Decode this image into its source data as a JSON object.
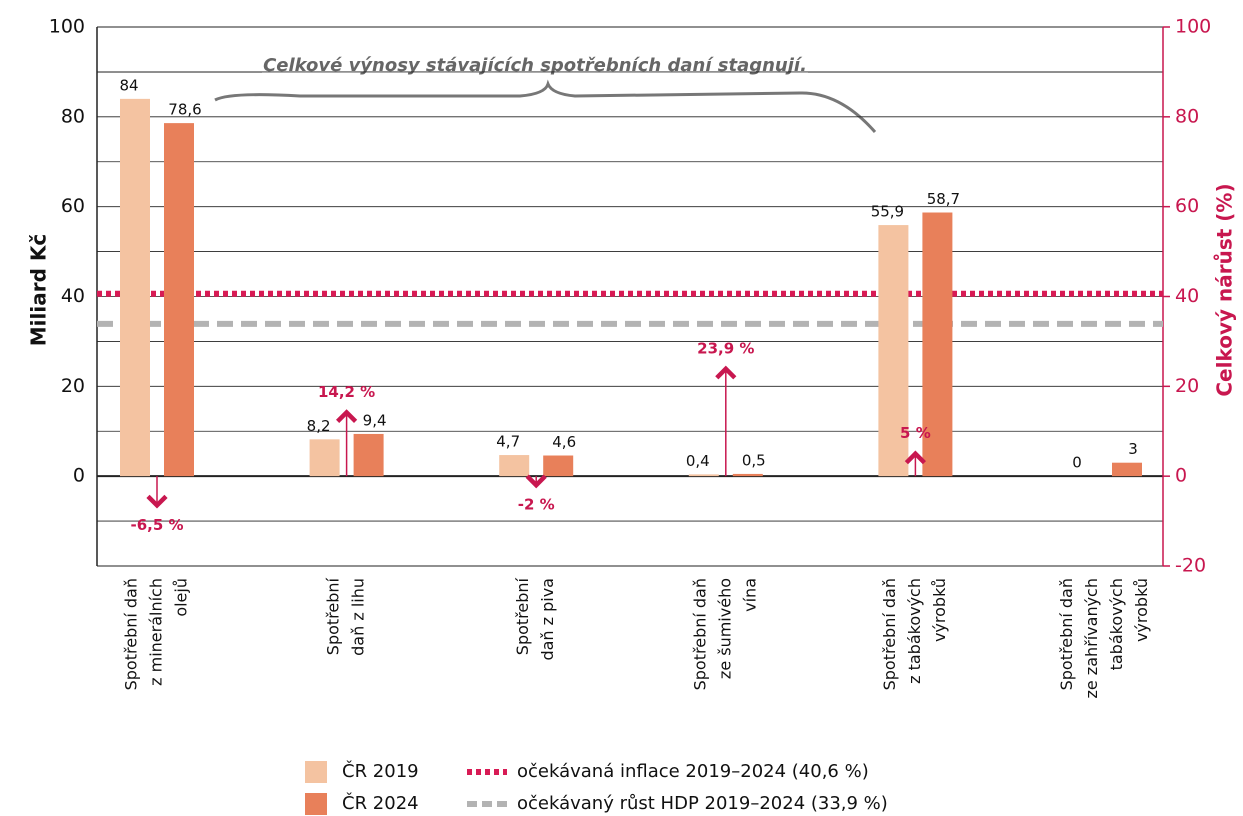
{
  "chart_data": {
    "type": "bar",
    "ylabel": "Miliard Kč",
    "y2label": "Celkový nárůst (%)",
    "annotation": "Celkové výnosy stávajících spotřebních daní stagnují.",
    "categories": [
      [
        "Spotřební daň",
        "z minerálních",
        "olejů"
      ],
      [
        "Spotřební",
        "daň z lihu"
      ],
      [
        "Spotřební",
        "daň z piva"
      ],
      [
        "Spotřební daň",
        "ze šumivého",
        "vína"
      ],
      [
        "Spotřební daň",
        "z tabákových",
        "výrobků"
      ],
      [
        "Spotřební daň",
        "ze zahřívaných",
        "tabákových",
        "výrobků"
      ]
    ],
    "series": [
      {
        "name": "ČR 2019",
        "color": "#f4c3a1",
        "values": [
          84,
          8.2,
          4.7,
          0.4,
          55.9,
          0
        ],
        "value_labels": [
          "84",
          "8,2",
          "4,7",
          "0,4",
          "55,9",
          "0"
        ]
      },
      {
        "name": "ČR 2024",
        "color": "#e8805a",
        "values": [
          78.6,
          9.4,
          4.6,
          0.5,
          58.7,
          3
        ],
        "value_labels": [
          "78,6",
          "9,4",
          "4,6",
          "0,5",
          "58,7",
          "3"
        ]
      }
    ],
    "growth": {
      "color": "#c8174f",
      "axis": "y2",
      "values": [
        -6.5,
        14.2,
        -2,
        23.9,
        5,
        null
      ],
      "value_labels": [
        "-6,5 %",
        "14,2 %",
        "-2 %",
        "23,9 %",
        "5 %",
        null
      ]
    },
    "reference_lines": [
      {
        "name": "očekávaná inflace 2019–2024 (40,6 %)",
        "value": 40.6,
        "color": "#d81b55",
        "style": "dotted",
        "axis": "y2"
      },
      {
        "name": "očekávaný růst HDP 2019–2024 (33,9 %)",
        "value": 33.9,
        "color": "#b3b3b3",
        "style": "dashed",
        "axis": "y2"
      }
    ],
    "ylim": [
      -20,
      100
    ],
    "yticks": [
      0,
      20,
      40,
      60,
      80,
      100
    ],
    "y2lim": [
      -20,
      100
    ],
    "y2ticks": [
      -20,
      0,
      20,
      40,
      60,
      80,
      100
    ],
    "minor_yticks": [
      -10,
      10,
      30,
      50,
      70,
      90
    ],
    "grid": true
  }
}
